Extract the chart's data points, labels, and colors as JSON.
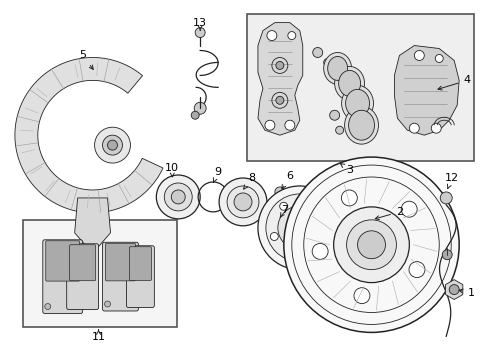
{
  "bg_color": "#ffffff",
  "line_color": "#222222",
  "box_fill": "#eeeeee",
  "figsize": [
    4.89,
    3.6
  ],
  "dpi": 100
}
